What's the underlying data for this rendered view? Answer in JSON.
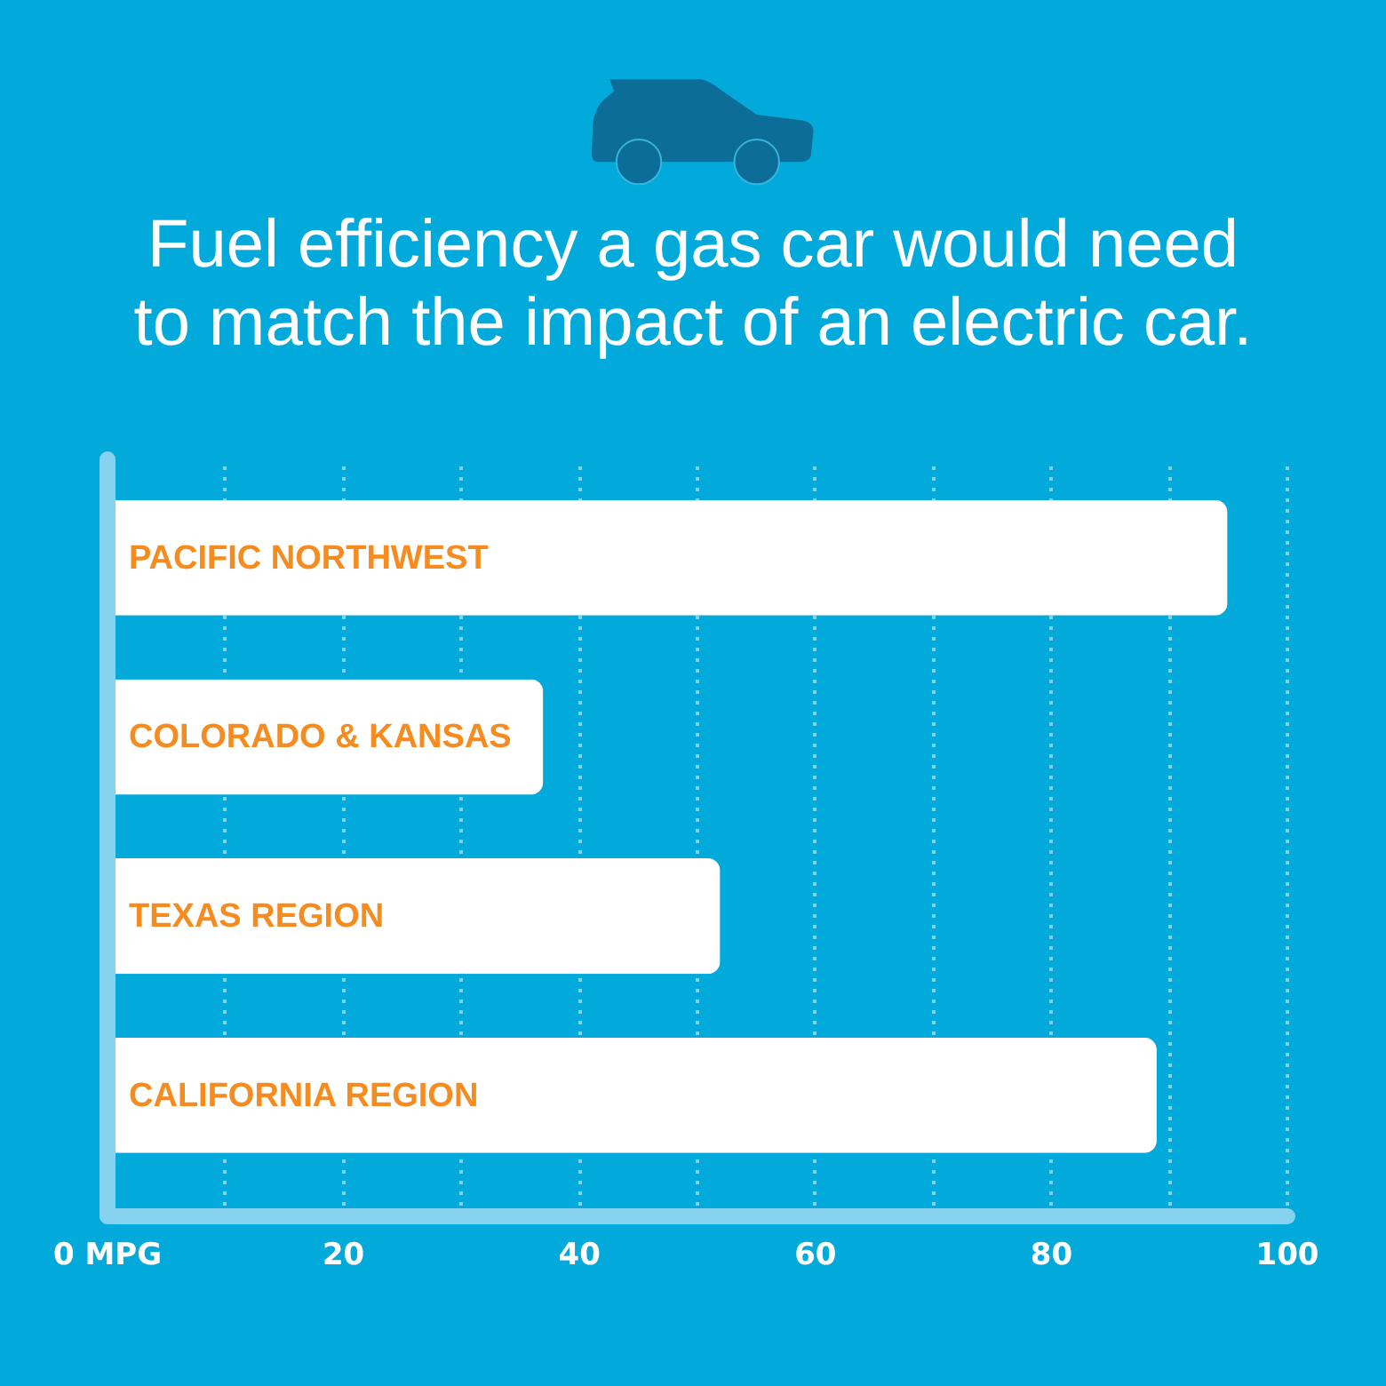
{
  "chart_data": {
    "type": "bar",
    "orientation": "horizontal",
    "title": "Fuel efficiency a gas car would need to match the impact of an electric car.",
    "categories": [
      "PACIFIC NORTHWEST",
      "COLORADO & KANSAS",
      "TEXAS REGION",
      "CALIFORNIA REGION"
    ],
    "values": [
      95,
      37,
      52,
      89
    ],
    "color": "#ffffff",
    "xlim": [
      0,
      100
    ],
    "xticks": [
      {
        "value": 0,
        "label": "0 MPG"
      },
      {
        "value": 10,
        "label": null
      },
      20,
      {
        "value": 30,
        "label": null
      },
      40,
      {
        "value": 50,
        "label": null
      },
      60,
      {
        "value": 70,
        "label": null
      },
      80,
      {
        "value": 90,
        "label": null
      },
      100
    ],
    "grid": "x"
  }
}
